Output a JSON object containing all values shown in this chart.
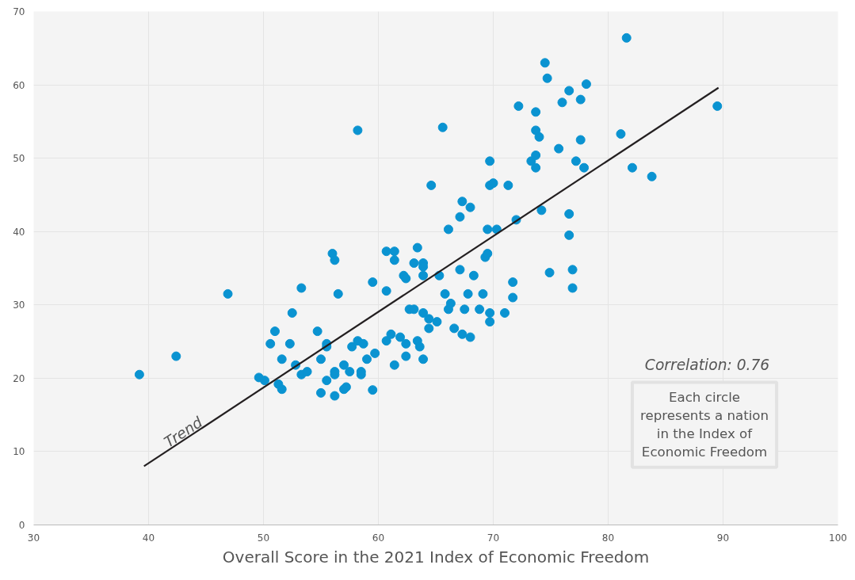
{
  "chart_data": {
    "type": "scatter",
    "xlabel": "Overall Score in the 2021 Index of Economic Freedom",
    "xlim": [
      30,
      100
    ],
    "xticks": [
      30,
      40,
      50,
      60,
      70,
      80,
      90,
      100
    ],
    "ylim": [
      0,
      70
    ],
    "yticks": [
      0,
      10,
      20,
      30,
      40,
      50,
      60,
      70
    ],
    "grid": true,
    "marker": "circle",
    "annotations": [
      "Trend",
      "Correlation: 0.76",
      "Each circle represents a nation in the Index of Economic Freedom"
    ],
    "series": [
      {
        "color": "#0a93d1",
        "x": [
          39.2,
          42.4,
          46.9,
          49.6,
          50.1,
          50.6,
          51.0,
          51.3,
          51.6,
          51.6,
          52.3,
          52.5,
          52.8,
          53.3,
          53.3,
          53.8,
          54.7,
          55.0,
          55.0,
          55.5,
          55.5,
          55.5,
          56.0,
          56.2,
          56.2,
          56.2,
          56.2,
          56.5,
          57.0,
          57.0,
          57.2,
          57.5,
          57.7,
          58.2,
          58.2,
          58.5,
          58.5,
          58.7,
          59.0,
          59.5,
          59.5,
          59.7,
          60.7,
          60.7,
          60.7,
          61.1,
          61.4,
          61.4,
          61.4,
          61.9,
          62.2,
          62.4,
          62.4,
          62.4,
          62.7,
          63.1,
          63.1,
          63.4,
          63.4,
          63.6,
          63.9,
          63.9,
          63.9,
          63.9,
          63.9,
          64.4,
          64.4,
          64.6,
          65.1,
          65.3,
          65.6,
          65.8,
          66.1,
          66.1,
          66.3,
          66.6,
          67.1,
          67.1,
          67.3,
          67.3,
          67.5,
          67.8,
          68.0,
          68.0,
          68.3,
          68.8,
          69.1,
          69.3,
          69.5,
          69.5,
          69.7,
          69.7,
          69.7,
          69.7,
          70.0,
          70.3,
          71.0,
          71.3,
          71.7,
          71.7,
          72.0,
          72.2,
          73.3,
          73.7,
          73.7,
          73.7,
          73.7,
          74.0,
          74.2,
          74.5,
          74.7,
          74.9,
          75.7,
          76.0,
          76.6,
          76.6,
          76.6,
          76.9,
          76.9,
          77.2,
          77.6,
          77.6,
          77.9,
          78.1,
          81.1,
          81.6,
          82.1,
          83.8,
          89.5
        ],
        "values": [
          20.5,
          23.0,
          31.5,
          20.1,
          19.7,
          24.7,
          26.4,
          19.2,
          22.6,
          18.5,
          24.7,
          28.9,
          21.8,
          32.3,
          20.5,
          20.9,
          26.4,
          22.6,
          18.0,
          24.7,
          24.3,
          19.7,
          37.0,
          36.1,
          20.9,
          20.5,
          17.6,
          31.5,
          21.8,
          18.5,
          18.8,
          20.9,
          24.3,
          25.1,
          53.8,
          20.9,
          20.5,
          24.7,
          22.6,
          33.1,
          18.4,
          23.4,
          37.3,
          31.9,
          25.1,
          26.0,
          37.3,
          36.1,
          21.8,
          25.6,
          34.0,
          33.6,
          24.7,
          23.0,
          29.4,
          29.4,
          35.7,
          37.8,
          25.1,
          24.3,
          35.7,
          35.2,
          34.0,
          28.9,
          22.6,
          28.1,
          26.8,
          46.3,
          27.7,
          34.0,
          54.2,
          31.5,
          40.3,
          29.4,
          30.2,
          26.8,
          34.8,
          42.0,
          44.1,
          26.0,
          29.4,
          31.5,
          43.3,
          25.6,
          34.0,
          29.4,
          31.5,
          36.5,
          37.0,
          40.3,
          49.6,
          46.3,
          28.9,
          27.7,
          46.6,
          40.3,
          28.9,
          46.3,
          33.1,
          31.0,
          41.6,
          57.1,
          49.6,
          50.4,
          48.7,
          56.3,
          53.8,
          52.9,
          42.9,
          63.0,
          60.9,
          34.4,
          51.3,
          57.6,
          59.2,
          42.4,
          39.5,
          34.8,
          32.3,
          49.6,
          58.0,
          52.5,
          48.7,
          60.1,
          53.3,
          66.4,
          48.7,
          47.5,
          57.1
        ]
      },
      {
        "type": "line",
        "color": "#231f20",
        "marker": "none",
        "line_style": "solid",
        "x": [
          39.6,
          89.6
        ],
        "values": [
          8.0,
          59.6
        ]
      }
    ]
  }
}
